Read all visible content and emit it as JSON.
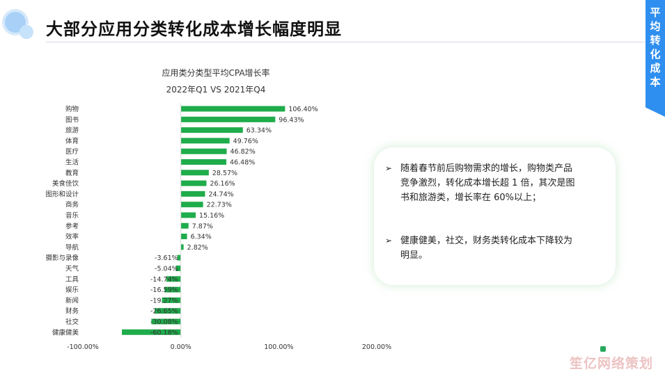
{
  "header": {
    "title": "大部分应用分类转化成本增长幅度明显"
  },
  "ribbon": {
    "label": "平均转化成本"
  },
  "colors": {
    "bar": "#1fac4b",
    "ribbon": "#2f8ff0",
    "panel_glow": "#7ec98b"
  },
  "chart_data": {
    "type": "bar",
    "orientation": "horizontal",
    "title": "应用类分类型平均CPA增长率",
    "subtitle": "2022年Q1 VS 2021年Q4",
    "categories": [
      "购物",
      "图书",
      "旅游",
      "体育",
      "医疗",
      "生活",
      "教育",
      "美食佳饮",
      "图形和设计",
      "商务",
      "音乐",
      "参考",
      "效率",
      "导航",
      "摄影与录像",
      "天气",
      "工具",
      "娱乐",
      "新闻",
      "财务",
      "社交",
      "健康健美"
    ],
    "values": [
      106.4,
      96.43,
      63.34,
      49.76,
      46.82,
      46.48,
      28.57,
      26.16,
      24.74,
      22.73,
      15.16,
      7.87,
      6.34,
      2.82,
      -3.61,
      -5.04,
      -14.74,
      -16.59,
      -19.27,
      -26.65,
      -30.08,
      -60.18
    ],
    "value_labels": [
      "106.40%",
      "96.43%",
      "63.34%",
      "49.76%",
      "46.82%",
      "46.48%",
      "28.57%",
      "26.16%",
      "24.74%",
      "22.73%",
      "15.16%",
      "7.87%",
      "6.34%",
      "2.82%",
      "-3.61%",
      "-5.04%",
      "-14.74%",
      "-16.59%",
      "-19.27%",
      "-26.65%",
      "-30.08%",
      "-60.18%"
    ],
    "xlim": [
      -100,
      200
    ],
    "xticks": [
      -100,
      0,
      100,
      200
    ],
    "xtick_labels": [
      "-100.00%",
      "0.00%",
      "100.00%",
      "200.00%"
    ],
    "grid": false,
    "legend": "none"
  },
  "notes": [
    "随着春节前后购物需求的增长，购物类产品竞争激烈，转化成本增长超 1 倍，其次是图书和旅游类，增长率在 60%以上；",
    "健康健美，社交，财务类转化成本下降较为明显。"
  ],
  "watermark": {
    "text": "笙亿网络策划"
  }
}
